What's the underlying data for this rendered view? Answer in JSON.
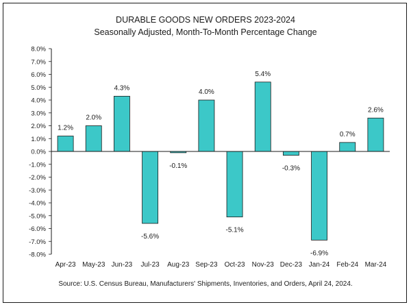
{
  "chart_data": {
    "type": "bar",
    "title": "DURABLE GOODS NEW ORDERS 2023-2024",
    "subtitle": "Seasonally Adjusted,  Month-To-Month Percentage Change",
    "categories": [
      "Apr-23",
      "May-23",
      "Jun-23",
      "Jul-23",
      "Aug-23",
      "Sep-23",
      "Oct-23",
      "Nov-23",
      "Dec-23",
      "Jan-24",
      "Feb-24",
      "Mar-24"
    ],
    "values": [
      1.2,
      2.0,
      4.3,
      -5.6,
      -0.1,
      4.0,
      -5.1,
      5.4,
      -0.3,
      -6.9,
      0.7,
      2.6
    ],
    "data_labels": [
      "1.2%",
      "2.0%",
      "4.3%",
      "-5.6%",
      "-0.1%",
      "4.0%",
      "-5.1%",
      "5.4%",
      "-0.3%",
      "-6.9%",
      "0.7%",
      "2.6%"
    ],
    "ylim": [
      -8.0,
      8.0
    ],
    "ytick_values": [
      8,
      7,
      6,
      5,
      4,
      3,
      2,
      1,
      0,
      -1,
      -2,
      -3,
      -4,
      -5,
      -6,
      -7,
      -8
    ],
    "ytick_labels": [
      "8.0%",
      "7.0%",
      "6.0%",
      "5.0%",
      "4.0%",
      "3.0%",
      "2.0%",
      "1.0%",
      "0.0%",
      "-1.0%",
      "-2.0%",
      "-3.0%",
      "-4.0%",
      "-5.0%",
      "-6.0%",
      "-7.0%",
      "-8.0%"
    ],
    "xlabel": "",
    "ylabel": "",
    "grid": false,
    "legend": "none",
    "bar_color": "#3cc8c8",
    "bar_edge_color": "#1a1a1a",
    "source": "Source: U.S. Census Bureau, Manufacturers' Shipments, Inventories, and Orders, April 24, 2024."
  }
}
